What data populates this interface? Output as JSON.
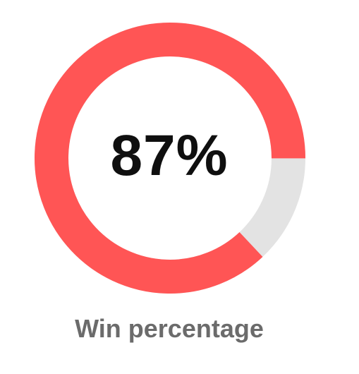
{
  "stat": {
    "value_text": "87%",
    "label": "Win percentage",
    "fraction": 0.87
  },
  "colors": {
    "progress": "#ff5555",
    "track": "#e3e3e3",
    "value_text": "#0f0f0f",
    "label_text": "#6b6b6b"
  }
}
